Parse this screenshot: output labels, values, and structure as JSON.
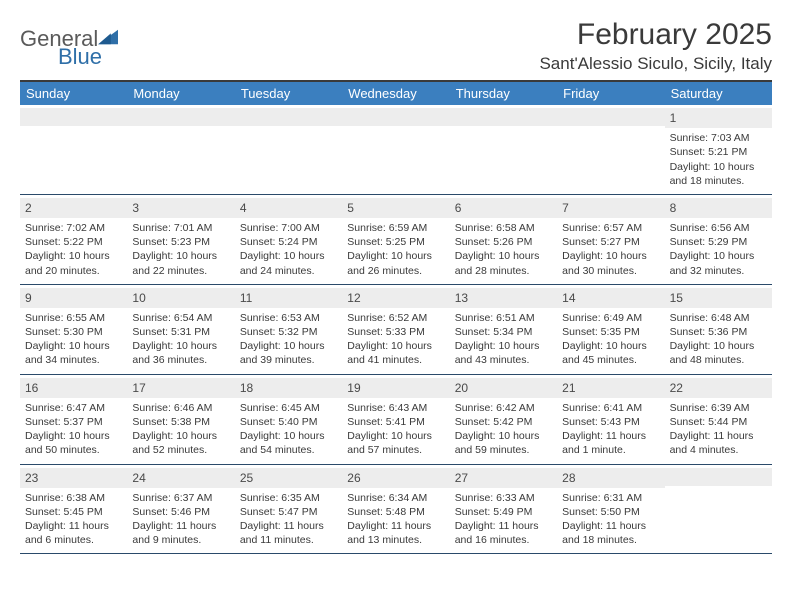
{
  "logo": {
    "text1": "General",
    "text2": "Blue",
    "color_general": "#5a5a5a",
    "color_blue": "#2f6fa8",
    "shape_color": "#2f6fa8"
  },
  "title": "February 2025",
  "location": "Sant'Alessio Siculo, Sicily, Italy",
  "colors": {
    "header_bar": "#3b7fbf",
    "header_text": "#ffffff",
    "daynum_bg": "#ededed",
    "rule": "#2a4a6a",
    "text": "#3a3a3a"
  },
  "weekdays": [
    "Sunday",
    "Monday",
    "Tuesday",
    "Wednesday",
    "Thursday",
    "Friday",
    "Saturday"
  ],
  "weeks": [
    [
      null,
      null,
      null,
      null,
      null,
      null,
      {
        "n": "1",
        "sr": "Sunrise: 7:03 AM",
        "ss": "Sunset: 5:21 PM",
        "dl": "Daylight: 10 hours and 18 minutes."
      }
    ],
    [
      {
        "n": "2",
        "sr": "Sunrise: 7:02 AM",
        "ss": "Sunset: 5:22 PM",
        "dl": "Daylight: 10 hours and 20 minutes."
      },
      {
        "n": "3",
        "sr": "Sunrise: 7:01 AM",
        "ss": "Sunset: 5:23 PM",
        "dl": "Daylight: 10 hours and 22 minutes."
      },
      {
        "n": "4",
        "sr": "Sunrise: 7:00 AM",
        "ss": "Sunset: 5:24 PM",
        "dl": "Daylight: 10 hours and 24 minutes."
      },
      {
        "n": "5",
        "sr": "Sunrise: 6:59 AM",
        "ss": "Sunset: 5:25 PM",
        "dl": "Daylight: 10 hours and 26 minutes."
      },
      {
        "n": "6",
        "sr": "Sunrise: 6:58 AM",
        "ss": "Sunset: 5:26 PM",
        "dl": "Daylight: 10 hours and 28 minutes."
      },
      {
        "n": "7",
        "sr": "Sunrise: 6:57 AM",
        "ss": "Sunset: 5:27 PM",
        "dl": "Daylight: 10 hours and 30 minutes."
      },
      {
        "n": "8",
        "sr": "Sunrise: 6:56 AM",
        "ss": "Sunset: 5:29 PM",
        "dl": "Daylight: 10 hours and 32 minutes."
      }
    ],
    [
      {
        "n": "9",
        "sr": "Sunrise: 6:55 AM",
        "ss": "Sunset: 5:30 PM",
        "dl": "Daylight: 10 hours and 34 minutes."
      },
      {
        "n": "10",
        "sr": "Sunrise: 6:54 AM",
        "ss": "Sunset: 5:31 PM",
        "dl": "Daylight: 10 hours and 36 minutes."
      },
      {
        "n": "11",
        "sr": "Sunrise: 6:53 AM",
        "ss": "Sunset: 5:32 PM",
        "dl": "Daylight: 10 hours and 39 minutes."
      },
      {
        "n": "12",
        "sr": "Sunrise: 6:52 AM",
        "ss": "Sunset: 5:33 PM",
        "dl": "Daylight: 10 hours and 41 minutes."
      },
      {
        "n": "13",
        "sr": "Sunrise: 6:51 AM",
        "ss": "Sunset: 5:34 PM",
        "dl": "Daylight: 10 hours and 43 minutes."
      },
      {
        "n": "14",
        "sr": "Sunrise: 6:49 AM",
        "ss": "Sunset: 5:35 PM",
        "dl": "Daylight: 10 hours and 45 minutes."
      },
      {
        "n": "15",
        "sr": "Sunrise: 6:48 AM",
        "ss": "Sunset: 5:36 PM",
        "dl": "Daylight: 10 hours and 48 minutes."
      }
    ],
    [
      {
        "n": "16",
        "sr": "Sunrise: 6:47 AM",
        "ss": "Sunset: 5:37 PM",
        "dl": "Daylight: 10 hours and 50 minutes."
      },
      {
        "n": "17",
        "sr": "Sunrise: 6:46 AM",
        "ss": "Sunset: 5:38 PM",
        "dl": "Daylight: 10 hours and 52 minutes."
      },
      {
        "n": "18",
        "sr": "Sunrise: 6:45 AM",
        "ss": "Sunset: 5:40 PM",
        "dl": "Daylight: 10 hours and 54 minutes."
      },
      {
        "n": "19",
        "sr": "Sunrise: 6:43 AM",
        "ss": "Sunset: 5:41 PM",
        "dl": "Daylight: 10 hours and 57 minutes."
      },
      {
        "n": "20",
        "sr": "Sunrise: 6:42 AM",
        "ss": "Sunset: 5:42 PM",
        "dl": "Daylight: 10 hours and 59 minutes."
      },
      {
        "n": "21",
        "sr": "Sunrise: 6:41 AM",
        "ss": "Sunset: 5:43 PM",
        "dl": "Daylight: 11 hours and 1 minute."
      },
      {
        "n": "22",
        "sr": "Sunrise: 6:39 AM",
        "ss": "Sunset: 5:44 PM",
        "dl": "Daylight: 11 hours and 4 minutes."
      }
    ],
    [
      {
        "n": "23",
        "sr": "Sunrise: 6:38 AM",
        "ss": "Sunset: 5:45 PM",
        "dl": "Daylight: 11 hours and 6 minutes."
      },
      {
        "n": "24",
        "sr": "Sunrise: 6:37 AM",
        "ss": "Sunset: 5:46 PM",
        "dl": "Daylight: 11 hours and 9 minutes."
      },
      {
        "n": "25",
        "sr": "Sunrise: 6:35 AM",
        "ss": "Sunset: 5:47 PM",
        "dl": "Daylight: 11 hours and 11 minutes."
      },
      {
        "n": "26",
        "sr": "Sunrise: 6:34 AM",
        "ss": "Sunset: 5:48 PM",
        "dl": "Daylight: 11 hours and 13 minutes."
      },
      {
        "n": "27",
        "sr": "Sunrise: 6:33 AM",
        "ss": "Sunset: 5:49 PM",
        "dl": "Daylight: 11 hours and 16 minutes."
      },
      {
        "n": "28",
        "sr": "Sunrise: 6:31 AM",
        "ss": "Sunset: 5:50 PM",
        "dl": "Daylight: 11 hours and 18 minutes."
      },
      null
    ]
  ]
}
